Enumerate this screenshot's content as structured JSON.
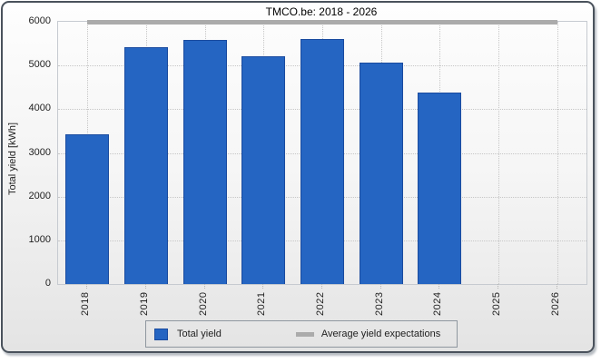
{
  "chart_data": {
    "type": "bar",
    "title": "TMCO.be: 2018 - 2026",
    "ylabel": "Total yield [kWh]",
    "xlabel": "",
    "categories": [
      "2018",
      "2019",
      "2020",
      "2021",
      "2022",
      "2023",
      "2024",
      "2025",
      "2026"
    ],
    "series": [
      {
        "name": "Total yield",
        "type": "bar",
        "color": "#2565C2",
        "border_color": "#1A4B9F",
        "values": [
          3420,
          5420,
          5580,
          5210,
          5600,
          5060,
          4380,
          null,
          null
        ]
      },
      {
        "name": "Average yield expectations",
        "type": "line",
        "color": "#ABABAB",
        "value": 6000
      }
    ],
    "ylim": [
      0,
      6000
    ],
    "yticks": [
      0,
      1000,
      2000,
      3000,
      4000,
      5000,
      6000
    ],
    "grid": true,
    "legend_position": "bottom"
  }
}
